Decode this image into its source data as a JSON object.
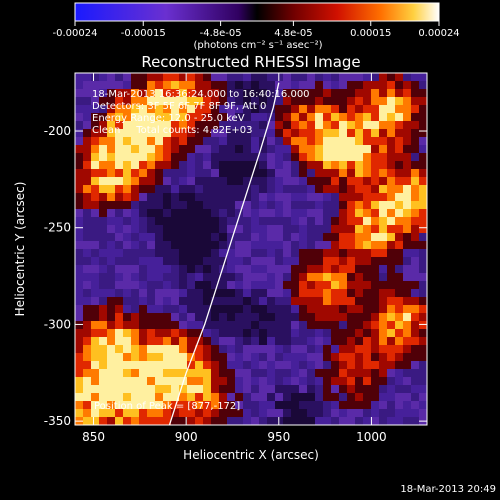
{
  "chart_data": {
    "type": "heatmap",
    "title": "Reconstructed RHESSI Image",
    "xlabel": "Heliocentric X (arcsec)",
    "ylabel": "Heliocentric Y (arcsec)",
    "xlim": [
      840,
      1030
    ],
    "ylim": [
      -352,
      -170
    ],
    "x_ticks": [
      850,
      900,
      950,
      1000
    ],
    "y_ticks": [
      -200,
      -250,
      -300,
      -350
    ],
    "colorbar": {
      "min": -0.00024,
      "max": 0.00024,
      "tick_values": [
        -0.00024,
        -0.00015,
        -4.8e-05,
        4.8e-05,
        0.00015,
        0.00024
      ],
      "tick_labels": [
        "-0.00024",
        "-0.00015",
        "-4.8e-05",
        "4.8e-05",
        "0.00015",
        "0.00024"
      ],
      "units": "(photons cm⁻² s⁻¹ asec⁻²)"
    },
    "info": [
      "18-Mar-2013 16:36:24.000 to 16:40:16.000",
      "Detectors: 3F 5F 6F 7F 8F 9F, Att 0",
      "Energy Range: 12.0 - 25.0 keV",
      "Clean     Total counts: 4.82E+03"
    ],
    "peak_label": "Position of Peak = [877,-172]",
    "limb_curve": [
      [
        890,
        -355
      ],
      [
        900,
        -325
      ],
      [
        910,
        -300
      ],
      [
        920,
        -270
      ],
      [
        930,
        -240
      ],
      [
        940,
        -210
      ],
      [
        947,
        -188
      ],
      [
        950,
        -175
      ]
    ],
    "hot_regions": [
      {
        "x": 868,
        "y": -210,
        "intensity": 0.8
      },
      {
        "x": 880,
        "y": -195,
        "intensity": 0.95
      },
      {
        "x": 855,
        "y": -225,
        "intensity": 0.6
      },
      {
        "x": 900,
        "y": -185,
        "intensity": 0.7
      },
      {
        "x": 860,
        "y": -310,
        "intensity": 0.9
      },
      {
        "x": 875,
        "y": -335,
        "intensity": 1.0
      },
      {
        "x": 895,
        "y": -320,
        "intensity": 0.85
      },
      {
        "x": 848,
        "y": -340,
        "intensity": 0.9
      },
      {
        "x": 910,
        "y": -340,
        "intensity": 0.55
      },
      {
        "x": 985,
        "y": -210,
        "intensity": 0.95
      },
      {
        "x": 1010,
        "y": -190,
        "intensity": 0.8
      },
      {
        "x": 1000,
        "y": -250,
        "intensity": 0.75
      },
      {
        "x": 975,
        "y": -280,
        "intensity": 0.7
      },
      {
        "x": 1015,
        "y": -300,
        "intensity": 0.8
      },
      {
        "x": 965,
        "y": -195,
        "intensity": 0.6
      },
      {
        "x": 990,
        "y": -325,
        "intensity": 0.5
      },
      {
        "x": 1020,
        "y": -235,
        "intensity": 0.9
      }
    ],
    "cold_regions": [
      {
        "x": 905,
        "y": -255,
        "intensity": 0.9
      },
      {
        "x": 930,
        "y": -220,
        "intensity": 0.8
      },
      {
        "x": 915,
        "y": -290,
        "intensity": 0.7
      },
      {
        "x": 945,
        "y": -300,
        "intensity": 0.6
      },
      {
        "x": 960,
        "y": -345,
        "intensity": 0.7
      },
      {
        "x": 890,
        "y": -240,
        "intensity": 0.6
      },
      {
        "x": 935,
        "y": -180,
        "intensity": 0.6
      }
    ]
  },
  "footer": {
    "timestamp": "18-Mar-2013 20:49"
  }
}
